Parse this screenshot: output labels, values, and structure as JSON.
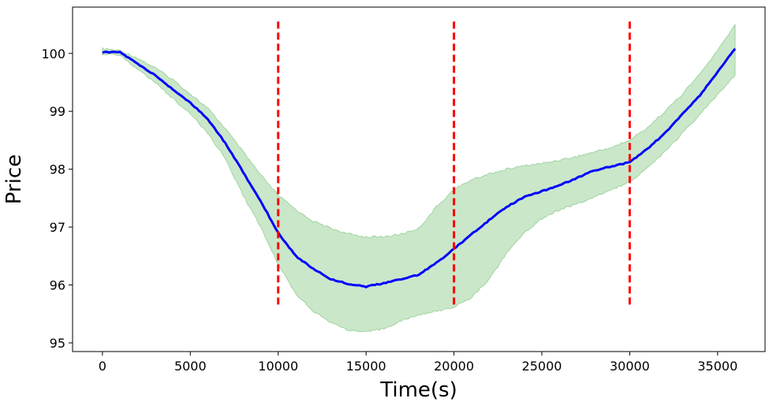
{
  "chart_data": {
    "type": "line",
    "title": "",
    "xlabel": "Time(s)",
    "ylabel": "Price",
    "xlim": [
      -1700,
      37700
    ],
    "ylim": [
      94.85,
      100.8
    ],
    "grid": false,
    "x_ticks": [
      0,
      5000,
      10000,
      15000,
      20000,
      25000,
      30000,
      35000
    ],
    "x_tick_labels": [
      "0",
      "5000",
      "10000",
      "15000",
      "20000",
      "25000",
      "30000",
      "35000"
    ],
    "y_ticks": [
      95,
      96,
      97,
      98,
      99,
      100
    ],
    "y_tick_labels": [
      "95",
      "96",
      "97",
      "98",
      "99",
      "100"
    ],
    "series": [
      {
        "kind": "line",
        "color": "#0000ff",
        "x": [
          0,
          1000,
          2000,
          3000,
          4000,
          5000,
          6000,
          7000,
          8000,
          9000,
          10000,
          11000,
          12000,
          13000,
          14000,
          15000,
          16000,
          17000,
          18000,
          19000,
          20000,
          21000,
          22000,
          23000,
          24000,
          25000,
          26000,
          27000,
          28000,
          29000,
          30000,
          31000,
          32000,
          33000,
          34000,
          35000,
          36000
        ],
        "y": [
          100.02,
          100.02,
          99.82,
          99.62,
          99.38,
          99.15,
          98.86,
          98.45,
          97.95,
          97.45,
          96.9,
          96.5,
          96.28,
          96.1,
          96.02,
          95.97,
          96.03,
          96.1,
          96.18,
          96.38,
          96.62,
          96.88,
          97.12,
          97.35,
          97.52,
          97.62,
          97.72,
          97.85,
          97.98,
          98.05,
          98.12,
          98.35,
          98.62,
          98.95,
          99.28,
          99.68,
          100.08
        ]
      },
      {
        "kind": "band",
        "color": "#2ca02c",
        "x": [
          0,
          1000,
          2000,
          3000,
          4000,
          5000,
          6000,
          7000,
          8000,
          9000,
          10000,
          11000,
          12000,
          13000,
          14000,
          15000,
          16000,
          17000,
          18000,
          19000,
          20000,
          21000,
          22000,
          23000,
          24000,
          25000,
          26000,
          27000,
          28000,
          29000,
          30000,
          31000,
          32000,
          33000,
          34000,
          35000,
          36000
        ],
        "upper": [
          100.08,
          100.05,
          99.92,
          99.75,
          99.55,
          99.3,
          99.05,
          98.7,
          98.3,
          97.9,
          97.55,
          97.3,
          97.1,
          96.98,
          96.88,
          96.83,
          96.83,
          96.88,
          96.98,
          97.35,
          97.65,
          97.82,
          97.92,
          98.0,
          98.06,
          98.1,
          98.16,
          98.22,
          98.3,
          98.38,
          98.5,
          98.72,
          99.0,
          99.3,
          99.65,
          100.05,
          100.5
        ],
        "lower": [
          99.98,
          99.98,
          99.72,
          99.5,
          99.22,
          98.95,
          98.62,
          98.18,
          97.55,
          97.0,
          96.35,
          95.85,
          95.55,
          95.35,
          95.22,
          95.18,
          95.25,
          95.38,
          95.48,
          95.55,
          95.62,
          95.78,
          96.1,
          96.55,
          96.9,
          97.15,
          97.3,
          97.4,
          97.52,
          97.65,
          97.78,
          98.02,
          98.3,
          98.62,
          98.95,
          99.28,
          99.62
        ]
      }
    ],
    "vlines": {
      "color": "#ff0000",
      "x": [
        10000,
        20000,
        30000
      ],
      "y_range": [
        95.6,
        100.55
      ]
    }
  }
}
